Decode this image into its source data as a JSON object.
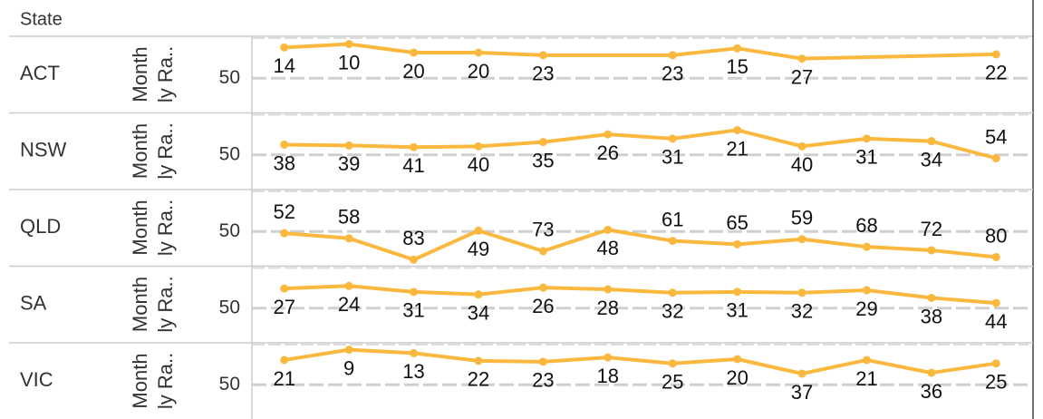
{
  "header": {
    "title": "State"
  },
  "chart_data": [
    {
      "type": "line",
      "title": "ACT",
      "y_label": "Monthly Ra..",
      "x": [
        1,
        2,
        3,
        4,
        5,
        7,
        8,
        9,
        12
      ],
      "values": [
        14,
        10,
        20,
        20,
        23,
        23,
        15,
        27,
        22
      ],
      "color": "#fbb83f",
      "xlim": [
        0.5,
        12.5
      ],
      "ylim": [
        88,
        3
      ],
      "yticks": [
        50
      ],
      "grid": true
    },
    {
      "type": "line",
      "title": "NSW",
      "y_label": "Monthly Ra..",
      "x": [
        1,
        2,
        3,
        4,
        5,
        6,
        7,
        8,
        9,
        10,
        11,
        12
      ],
      "values": [
        38,
        39,
        41,
        40,
        35,
        26,
        31,
        21,
        40,
        31,
        34,
        54
      ],
      "color": "#fbb83f",
      "xlim": [
        0.5,
        12.5
      ],
      "ylim": [
        88,
        3
      ],
      "yticks": [
        50
      ],
      "grid": true
    },
    {
      "type": "line",
      "title": "QLD",
      "y_label": "Monthly Ra..",
      "x": [
        1,
        2,
        3,
        4,
        5,
        6,
        7,
        8,
        9,
        10,
        11,
        12
      ],
      "values": [
        52,
        58,
        83,
        49,
        73,
        48,
        61,
        65,
        59,
        68,
        72,
        80
      ],
      "color": "#fbb83f",
      "xlim": [
        0.5,
        12.5
      ],
      "ylim": [
        88,
        3
      ],
      "yticks": [
        50
      ],
      "grid": true
    },
    {
      "type": "line",
      "title": "SA",
      "y_label": "Monthly Ra..",
      "x": [
        1,
        2,
        3,
        4,
        5,
        6,
        7,
        8,
        9,
        10,
        11,
        12
      ],
      "values": [
        27,
        24,
        31,
        34,
        26,
        28,
        32,
        31,
        32,
        29,
        38,
        44
      ],
      "color": "#fbb83f",
      "xlim": [
        0.5,
        12.5
      ],
      "ylim": [
        88,
        3
      ],
      "yticks": [
        50
      ],
      "grid": true
    },
    {
      "type": "line",
      "title": "VIC",
      "y_label": "Monthly Ra..",
      "x": [
        1,
        2,
        3,
        4,
        5,
        6,
        7,
        8,
        9,
        10,
        11,
        12
      ],
      "values": [
        21,
        9,
        13,
        22,
        23,
        18,
        25,
        20,
        37,
        21,
        36,
        25
      ],
      "color": "#fbb83f",
      "xlim": [
        0.5,
        12.5
      ],
      "ylim": [
        88,
        3
      ],
      "yticks": [
        50
      ],
      "grid": true
    }
  ]
}
